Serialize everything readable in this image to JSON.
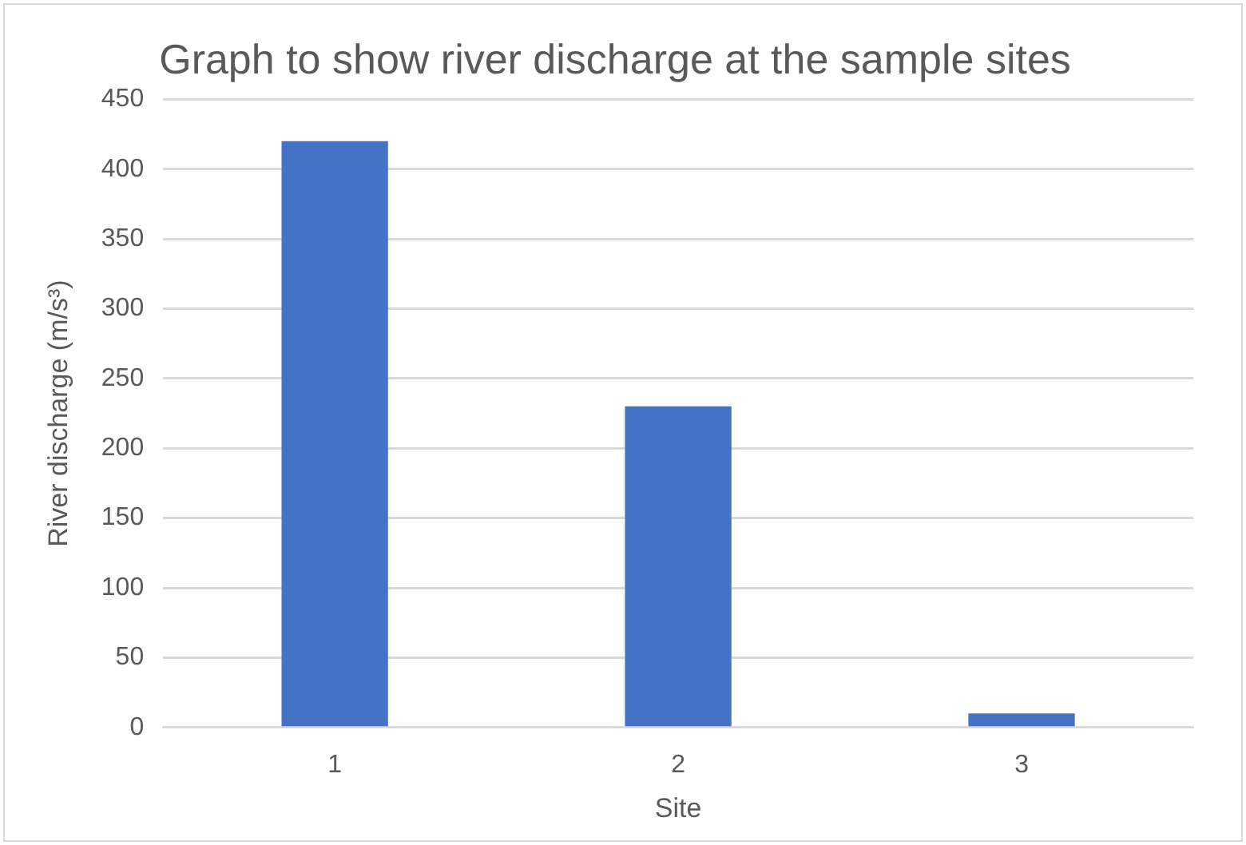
{
  "chart_data": {
    "type": "bar",
    "title": "Graph to show river discharge at the sample sites",
    "xlabel": "Site",
    "ylabel": "River discharge (m/s³)",
    "categories": [
      "1",
      "2",
      "3"
    ],
    "values": [
      420,
      230,
      10
    ],
    "color": "#4472c4",
    "ylim": [
      0,
      450
    ],
    "yticks": [
      0,
      50,
      100,
      150,
      200,
      250,
      300,
      350,
      400,
      450
    ],
    "grid": "y"
  }
}
